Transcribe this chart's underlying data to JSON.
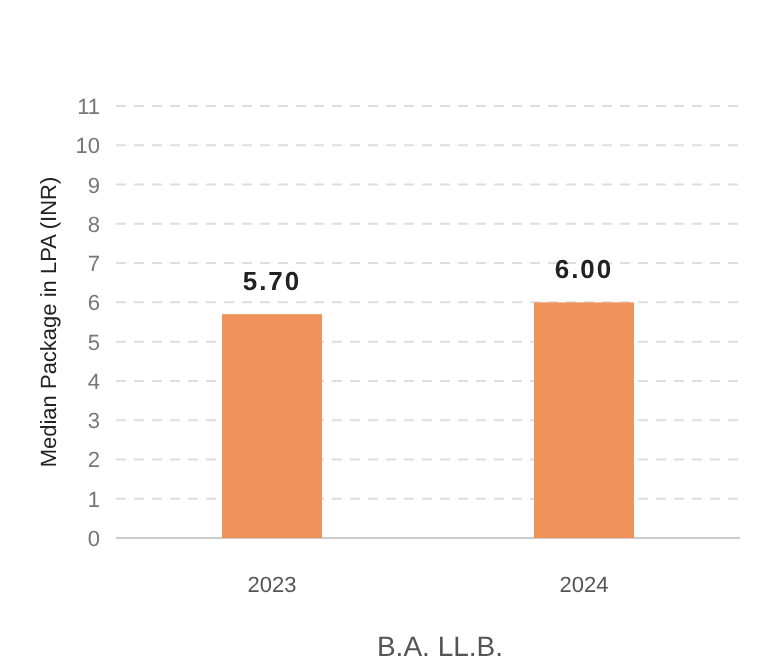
{
  "chart_data": {
    "type": "bar",
    "xlabel": "B.A. LL.B.",
    "ylabel": "Median Package in LPA (INR)",
    "categories": [
      "2023",
      "2024"
    ],
    "values": [
      5.7,
      6.0
    ],
    "color": "#f0935a",
    "value_labels": [
      "5.70",
      "6.00"
    ],
    "ylim": [
      0,
      11
    ],
    "yticks": [
      0,
      1,
      2,
      3,
      4,
      5,
      6,
      7,
      8,
      9,
      10,
      11
    ],
    "grid": "y"
  }
}
